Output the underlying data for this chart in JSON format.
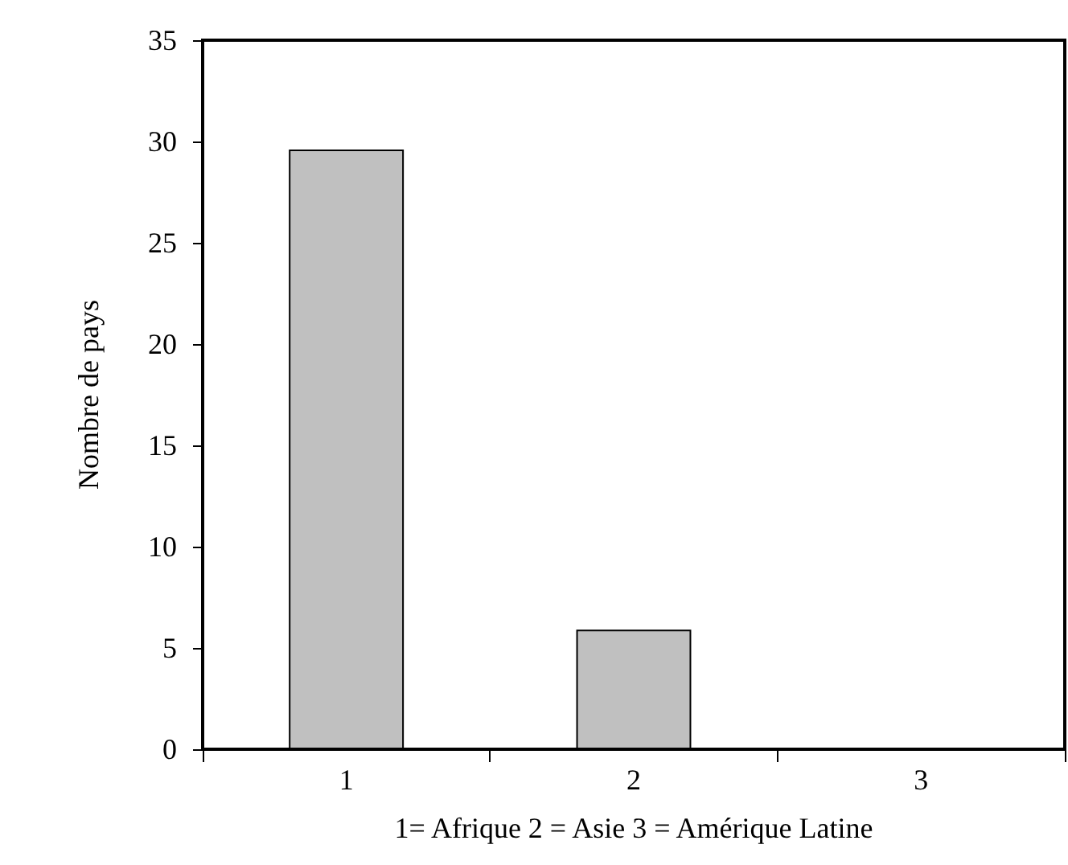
{
  "chart_data": {
    "type": "bar",
    "categories": [
      "1",
      "2",
      "3"
    ],
    "values": [
      29.6,
      5.9,
      0
    ],
    "color": "#c0c0c0",
    "xlabel": "1= Afrique 2 = Asie 3 = Amérique Latine",
    "ylabel": "Nombre de pays",
    "ylim": [
      0,
      35
    ],
    "yticks": [
      0,
      5,
      10,
      15,
      20,
      25,
      30,
      35
    ],
    "grid": false
  }
}
